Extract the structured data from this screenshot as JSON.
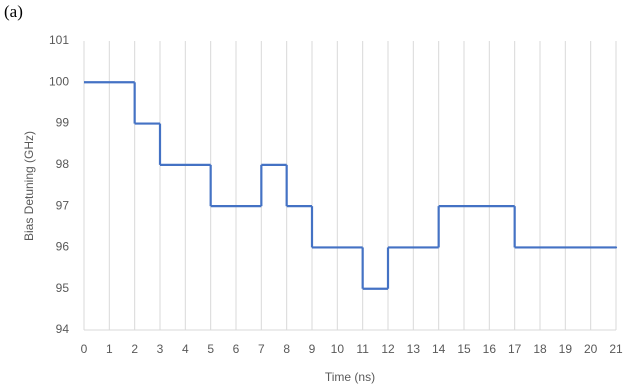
{
  "panel_label": "(a)",
  "chart_data": {
    "type": "step",
    "step": "post",
    "x_label": "Time (ns)",
    "y_label": "Bias Detuning (GHz)",
    "x": [
      0,
      2,
      3,
      5,
      7,
      8,
      9,
      11,
      12,
      14,
      17,
      21
    ],
    "series": [
      {
        "color": "#4472c4",
        "values": [
          100,
          99,
          98,
          97,
          98,
          97,
          96,
          95,
          96,
          97,
          96,
          96
        ]
      }
    ],
    "xlim": [
      0,
      21
    ],
    "xticks": [
      0,
      1,
      2,
      3,
      4,
      5,
      6,
      7,
      8,
      9,
      10,
      11,
      12,
      13,
      14,
      15,
      16,
      17,
      18,
      19,
      20,
      21
    ],
    "ylim": [
      94,
      101
    ],
    "yticks": [
      94,
      95,
      96,
      97,
      98,
      99,
      100,
      101
    ],
    "grid": "x"
  }
}
